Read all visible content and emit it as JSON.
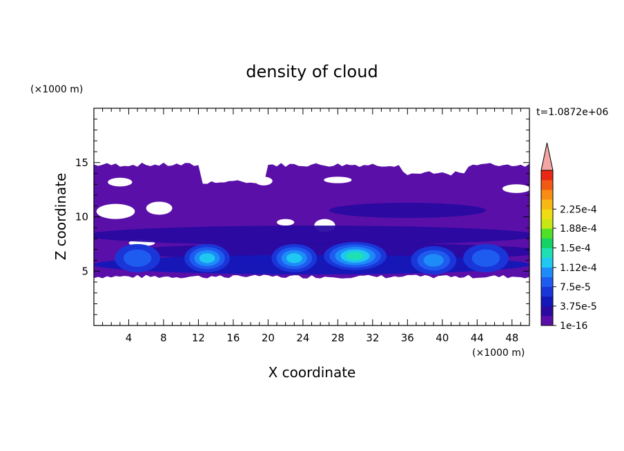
{
  "chart_data": {
    "type": "heatmap",
    "title": "density of cloud",
    "time_label": "t=1.0872e+06",
    "xlabel": "X coordinate",
    "ylabel": "Z coordinate",
    "x_unit": "(×1000 m)",
    "y_unit": "(×1000 m)",
    "xlim": [
      0,
      50
    ],
    "ylim": [
      0,
      20
    ],
    "x_ticks": [
      4,
      8,
      12,
      16,
      20,
      24,
      28,
      32,
      36,
      40,
      44,
      48
    ],
    "y_ticks": [
      5,
      10,
      15
    ],
    "colorbar": {
      "tick_labels": [
        "1e-16",
        "3.75e-5",
        "7.5e-5",
        "1.12e-4",
        "1.5e-4",
        "1.88e-4",
        "2.25e-4"
      ],
      "tick_values": [
        0,
        3.75e-05,
        7.5e-05,
        0.000112,
        0.00015,
        0.000188,
        0.000225
      ],
      "level_step": 1.875e-05,
      "colors": [
        "#5a10a8",
        "#2a0aa0",
        "#1418b8",
        "#1a36d8",
        "#1e5cf0",
        "#1e8cf8",
        "#1ec8f0",
        "#1ee0b4",
        "#14d264",
        "#50e028",
        "#c8e614",
        "#f0dc14",
        "#f8b814",
        "#f88c14",
        "#f05a14",
        "#e82814"
      ],
      "extend_color": "#f5a5a5"
    },
    "cloud_layer": {
      "base_km": 4.5,
      "top_km": 15,
      "dense_cores": [
        {
          "x_km": 5,
          "z_km": 6.2,
          "level": "5.6e-5"
        },
        {
          "x_km": 13,
          "z_km": 6.2,
          "level": "9.4e-5"
        },
        {
          "x_km": 23,
          "z_km": 6.2,
          "level": "9.4e-5"
        },
        {
          "x_km": 30,
          "z_km": 6.4,
          "level": "1.31e-4"
        },
        {
          "x_km": 39,
          "z_km": 6.0,
          "level": "7.5e-5"
        },
        {
          "x_km": 45,
          "z_km": 6.2,
          "level": "5.6e-5"
        }
      ]
    }
  }
}
